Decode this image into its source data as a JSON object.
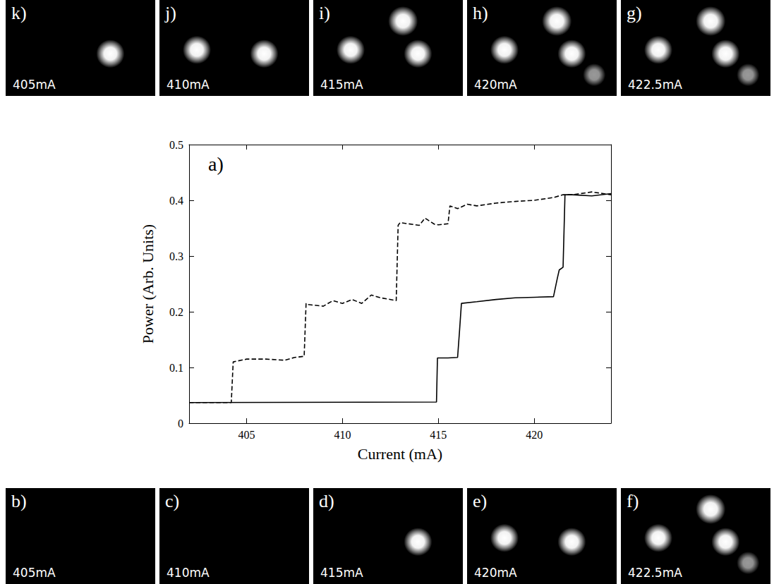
{
  "chart_data": {
    "type": "line",
    "panel_label": "a)",
    "x_label": "Current (mA)",
    "y_label": "Power (Arb. Units)",
    "xlim": [
      402,
      424
    ],
    "xticks": [
      405,
      410,
      415,
      420
    ],
    "ylim": [
      0,
      0.5
    ],
    "yticks": [
      0,
      0.1,
      0.2,
      0.3,
      0.4,
      0.5
    ],
    "grid": false,
    "series": [
      {
        "color": "#000000",
        "line_style": "dashed",
        "x": [
          402,
          404.2,
          404.3,
          405,
          406,
          407,
          407.5,
          408,
          408.1,
          408.2,
          409,
          409.5,
          410,
          410.5,
          411,
          411.5,
          412,
          412.8,
          412.9,
          413,
          414,
          414.3,
          414.8,
          415,
          415.5,
          415.6,
          416,
          416.5,
          417,
          418,
          419,
          420,
          421,
          421.5,
          422,
          423,
          424
        ],
        "values": [
          0.037,
          0.037,
          0.11,
          0.115,
          0.115,
          0.113,
          0.118,
          0.12,
          0.215,
          0.213,
          0.21,
          0.22,
          0.215,
          0.222,
          0.215,
          0.23,
          0.225,
          0.22,
          0.355,
          0.36,
          0.355,
          0.368,
          0.357,
          0.356,
          0.358,
          0.39,
          0.385,
          0.393,
          0.39,
          0.395,
          0.398,
          0.4,
          0.405,
          0.41,
          0.41,
          0.415,
          0.41
        ]
      },
      {
        "color": "#000000",
        "line_style": "solid",
        "x": [
          402,
          414.9,
          414.95,
          415.5,
          416,
          416.1,
          416.2,
          417,
          418,
          419,
          420,
          421,
          421.2,
          421.3,
          421.5,
          421.6,
          422,
          423,
          424
        ],
        "values": [
          0.037,
          0.038,
          0.117,
          0.117,
          0.118,
          0.165,
          0.215,
          0.218,
          0.222,
          0.225,
          0.226,
          0.227,
          0.26,
          0.275,
          0.28,
          0.41,
          0.41,
          0.408,
          0.412
        ]
      }
    ]
  },
  "panels": {
    "top": [
      {
        "letter": "k)",
        "label": "405mA",
        "spots": 1
      },
      {
        "letter": "j)",
        "label": "410mA",
        "spots": 2
      },
      {
        "letter": "i)",
        "label": "415mA",
        "spots": 3
      },
      {
        "letter": "h)",
        "label": "420mA",
        "spots": 4
      },
      {
        "letter": "g)",
        "label": "422.5mA",
        "spots": 4
      }
    ],
    "bottom": [
      {
        "letter": "b)",
        "label": "405mA",
        "spots": 0
      },
      {
        "letter": "c)",
        "label": "410mA",
        "spots": 0
      },
      {
        "letter": "d)",
        "label": "415mA",
        "spots": 1
      },
      {
        "letter": "e)",
        "label": "420mA",
        "spots": 2
      },
      {
        "letter": "f)",
        "label": "422.5mA",
        "spots": 4
      }
    ]
  }
}
